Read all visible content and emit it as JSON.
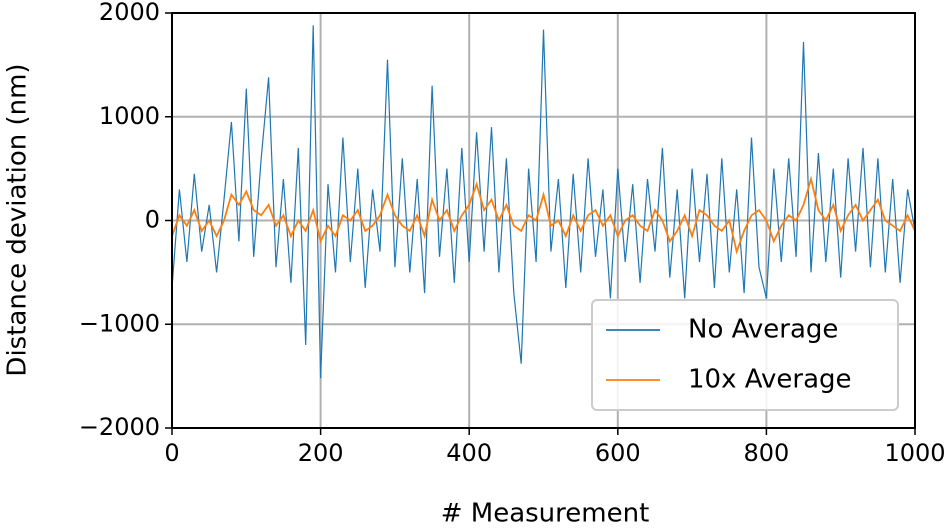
{
  "chart_data": {
    "type": "line",
    "xlabel": "# Measurement",
    "ylabel": "Distance deviation (nm)",
    "x": [
      0,
      10,
      20,
      30,
      40,
      50,
      60,
      70,
      80,
      90,
      100,
      110,
      120,
      130,
      140,
      150,
      160,
      170,
      180,
      190,
      200,
      210,
      220,
      230,
      240,
      250,
      260,
      270,
      280,
      290,
      300,
      310,
      320,
      330,
      340,
      350,
      360,
      370,
      380,
      390,
      400,
      410,
      420,
      430,
      440,
      450,
      460,
      470,
      480,
      490,
      500,
      510,
      520,
      530,
      540,
      550,
      560,
      570,
      580,
      590,
      600,
      610,
      620,
      630,
      640,
      650,
      660,
      670,
      680,
      690,
      700,
      710,
      720,
      730,
      740,
      750,
      760,
      770,
      780,
      790,
      800,
      810,
      820,
      830,
      840,
      850,
      860,
      870,
      880,
      890,
      900,
      910,
      920,
      930,
      940,
      950,
      960,
      970,
      980,
      990,
      1000
    ],
    "series": [
      {
        "name": "No Average",
        "color": "#1f77b4",
        "values": [
          -650,
          300,
          -400,
          450,
          -300,
          150,
          -500,
          200,
          950,
          -200,
          1270,
          -350,
          600,
          1380,
          -450,
          400,
          -600,
          700,
          -1200,
          1880,
          -1520,
          350,
          -500,
          800,
          -400,
          500,
          -650,
          300,
          -300,
          1550,
          -450,
          600,
          -500,
          400,
          -700,
          1300,
          -350,
          500,
          -600,
          700,
          -400,
          850,
          -300,
          900,
          -500,
          600,
          -700,
          -1380,
          500,
          -400,
          1840,
          -300,
          400,
          -650,
          450,
          -500,
          600,
          -350,
          300,
          -750,
          500,
          -400,
          350,
          -600,
          400,
          -300,
          700,
          -550,
          300,
          -750,
          500,
          -400,
          450,
          -650,
          600,
          -500,
          300,
          -700,
          800,
          -450,
          -750,
          500,
          -400,
          600,
          -350,
          1720,
          -500,
          650,
          -400,
          500,
          -550,
          600,
          -300,
          700,
          -450,
          600,
          -500,
          400,
          -600,
          300,
          -100
        ]
      },
      {
        "name": "10x Average",
        "color": "#ff7f0e",
        "values": [
          -150,
          50,
          -50,
          100,
          -100,
          0,
          -150,
          0,
          250,
          150,
          280,
          100,
          50,
          150,
          -50,
          50,
          -150,
          0,
          -100,
          100,
          -200,
          -50,
          -150,
          50,
          0,
          100,
          -100,
          -50,
          50,
          250,
          50,
          -50,
          -100,
          50,
          -150,
          200,
          0,
          100,
          -100,
          50,
          150,
          350,
          100,
          200,
          0,
          150,
          -50,
          -100,
          50,
          0,
          250,
          -50,
          0,
          -150,
          50,
          -100,
          50,
          100,
          -50,
          50,
          -150,
          0,
          50,
          -50,
          -100,
          100,
          0,
          -200,
          -100,
          50,
          -150,
          100,
          50,
          -50,
          -100,
          0,
          -300,
          -100,
          50,
          100,
          0,
          -200,
          -50,
          50,
          0,
          150,
          400,
          100,
          0,
          150,
          -100,
          50,
          150,
          0,
          100,
          200,
          0,
          -50,
          -100,
          50,
          -100
        ]
      }
    ],
    "xlim": [
      0,
      1000
    ],
    "xticks": [
      0,
      200,
      400,
      600,
      800,
      1000
    ],
    "ylim": [
      -2000,
      2000
    ],
    "yticks": [
      {
        "value": -2000,
        "label": "−2000"
      },
      {
        "value": -1000,
        "label": "−1000"
      },
      0,
      1000,
      2000
    ],
    "grid": true,
    "legend": "lower right"
  }
}
